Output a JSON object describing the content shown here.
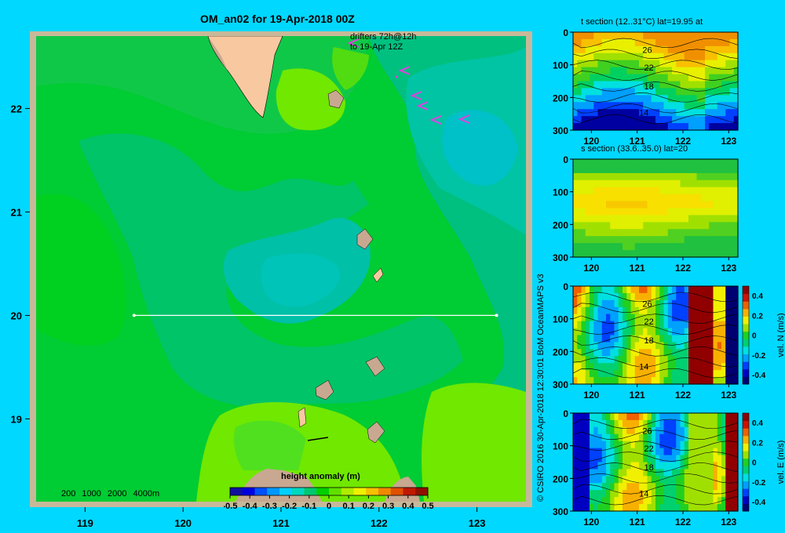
{
  "title": "OM_an02 for 19-Apr-2018 00Z",
  "drifters_note": [
    "drifters 72h@12h",
    "to 19-Apr 12Z"
  ],
  "depth_legend": [
    "200",
    "1000",
    "2000",
    "4000m"
  ],
  "credit": "© CSIRO 2016   30-Apr-2018 12:30:01 BoM OceanMAPS v3",
  "colors": {
    "background": "#00d8ff",
    "frame": "#c8b89a",
    "land": "#f8c8a0",
    "drifter": "#e040e0",
    "section_line": "#ffffff"
  },
  "chart_data": [
    {
      "type": "heatmap",
      "name": "map",
      "title": "OM_an02 for 19-Apr-2018 00Z",
      "variable": "height anomaly (m)",
      "xlim": [
        118.5,
        123.5
      ],
      "ylim": [
        18.2,
        22.7
      ],
      "x_ticks": [
        "119",
        "120",
        "121",
        "122",
        "123"
      ],
      "y_ticks": [
        "19",
        "20",
        "21",
        "22"
      ],
      "section_line": {
        "lat": 20.0,
        "lon_start": 119.5,
        "lon_end": 123.2
      },
      "colorbar": {
        "label": "height anomaly (m)",
        "ticks": [
          "-0.5",
          "-0.4",
          "-0.3",
          "-0.2",
          "-0.1",
          "0",
          "0.1",
          "0.2",
          "0.3",
          "0.4",
          "0.5"
        ],
        "range": [
          -0.5,
          0.5
        ]
      }
    },
    {
      "type": "heatmap",
      "name": "t-section",
      "title": "t section (12..31°C) lat=19.95 at",
      "xlim": [
        119.6,
        123.2
      ],
      "ylim": [
        300,
        0
      ],
      "x_ticks": [
        "120",
        "121",
        "122",
        "123"
      ],
      "y_ticks": [
        "0",
        "100",
        "200",
        "300"
      ],
      "contour_labels": [
        "26",
        "22",
        "18",
        "14"
      ]
    },
    {
      "type": "heatmap",
      "name": "s-section",
      "title": "s section (33.6..35.0) lat=20",
      "xlim": [
        119.6,
        123.2
      ],
      "ylim": [
        300,
        0
      ],
      "x_ticks": [
        "120",
        "121",
        "122",
        "123"
      ],
      "y_ticks": [
        "0",
        "100",
        "200",
        "300"
      ]
    },
    {
      "type": "heatmap",
      "name": "vN-section",
      "xlim": [
        119.6,
        123.2
      ],
      "ylim": [
        300,
        0
      ],
      "x_ticks": [
        "120",
        "121",
        "122",
        "123"
      ],
      "y_ticks": [
        "0",
        "100",
        "200",
        "300"
      ],
      "contour_labels": [
        "26",
        "22",
        "18",
        "14"
      ],
      "colorbar": {
        "label": "vel. N (m/s)",
        "ticks": [
          "0.4",
          "0.2",
          "0",
          "-0.2",
          "-0.4"
        ],
        "range": [
          -0.4,
          0.4
        ]
      }
    },
    {
      "type": "heatmap",
      "name": "vE-section",
      "xlim": [
        119.6,
        123.2
      ],
      "ylim": [
        300,
        0
      ],
      "x_ticks": [
        "120",
        "121",
        "122",
        "123"
      ],
      "y_ticks": [
        "0",
        "100",
        "200",
        "300"
      ],
      "contour_labels": [
        "26",
        "22",
        "18",
        "14"
      ],
      "colorbar": {
        "label": "vel. E (m/s)",
        "ticks": [
          "0.4",
          "0.2",
          "0",
          "-0.2",
          "-0.4"
        ],
        "range": [
          -0.4,
          0.4
        ]
      }
    }
  ]
}
